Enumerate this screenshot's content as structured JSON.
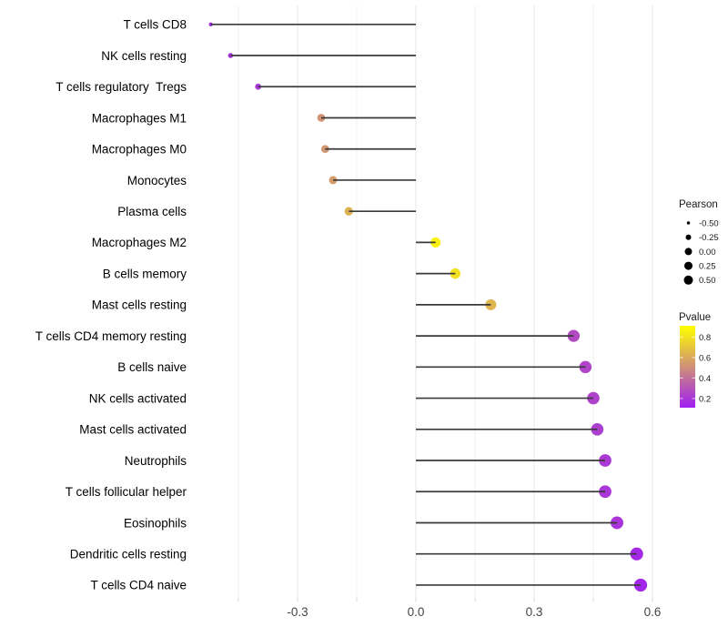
{
  "chart_data": {
    "type": "lollipop",
    "orientation": "horizontal",
    "title": "",
    "xlabel": "",
    "ylabel": "",
    "grid": true,
    "background_color": "#ffffff",
    "stem_color": "#3a3a3a",
    "x_axis": {
      "ticks": [
        -0.3,
        0.0,
        0.3,
        0.6
      ],
      "tick_labels": [
        "-0.3",
        "0.0",
        "0.3",
        "0.6"
      ],
      "minor_ticks": [
        -0.45,
        -0.15,
        0.15,
        0.45
      ],
      "range": [
        -0.57,
        0.63
      ]
    },
    "rows": [
      {
        "label": "T cells CD8",
        "pearson": -0.52,
        "pvalue": 0.17
      },
      {
        "label": "NK cells resting",
        "pearson": -0.47,
        "pvalue": 0.18
      },
      {
        "label": "T cells regulatory  Tregs",
        "pearson": -0.4,
        "pvalue": 0.21
      },
      {
        "label": "Macrophages M1",
        "pearson": -0.24,
        "pvalue": 0.52
      },
      {
        "label": "Macrophages M0",
        "pearson": -0.23,
        "pvalue": 0.53
      },
      {
        "label": "Monocytes",
        "pearson": -0.21,
        "pvalue": 0.55
      },
      {
        "label": "Plasma cells",
        "pearson": -0.17,
        "pvalue": 0.63
      },
      {
        "label": "Macrophages M2",
        "pearson": 0.05,
        "pvalue": 0.85
      },
      {
        "label": "B cells memory",
        "pearson": 0.1,
        "pvalue": 0.79
      },
      {
        "label": "Mast cells resting",
        "pearson": 0.19,
        "pvalue": 0.64
      },
      {
        "label": "T cells CD4 memory resting",
        "pearson": 0.4,
        "pvalue": 0.27
      },
      {
        "label": "B cells naive",
        "pearson": 0.43,
        "pvalue": 0.25
      },
      {
        "label": "NK cells activated",
        "pearson": 0.45,
        "pvalue": 0.24
      },
      {
        "label": "Mast cells activated",
        "pearson": 0.46,
        "pvalue": 0.23
      },
      {
        "label": "Neutrophils",
        "pearson": 0.48,
        "pvalue": 0.21
      },
      {
        "label": "T cells follicular helper",
        "pearson": 0.48,
        "pvalue": 0.2
      },
      {
        "label": "Eosinophils",
        "pearson": 0.51,
        "pvalue": 0.19
      },
      {
        "label": "Dendritic cells resting",
        "pearson": 0.56,
        "pvalue": 0.15
      },
      {
        "label": "T cells CD4 naive",
        "pearson": 0.57,
        "pvalue": 0.14
      }
    ],
    "size_legend": {
      "title": "Pearson",
      "items": [
        {
          "label": "-0.50",
          "value": -0.5
        },
        {
          "label": "-0.25",
          "value": -0.25
        },
        {
          "label": "0.00",
          "value": 0.0
        },
        {
          "label": "0.25",
          "value": 0.25
        },
        {
          "label": "0.50",
          "value": 0.5
        }
      ],
      "dot_color": "#000000"
    },
    "color_legend": {
      "title": "Pvalue",
      "tick_labels": [
        "0.8",
        "0.6",
        "0.4",
        "0.2"
      ],
      "tick_values": [
        0.8,
        0.6,
        0.4,
        0.2
      ],
      "bar_range": [
        0.11,
        0.91
      ],
      "low_value_color": "#A020F0",
      "high_value_color": "#FFFF00",
      "legend_position": "right"
    }
  }
}
